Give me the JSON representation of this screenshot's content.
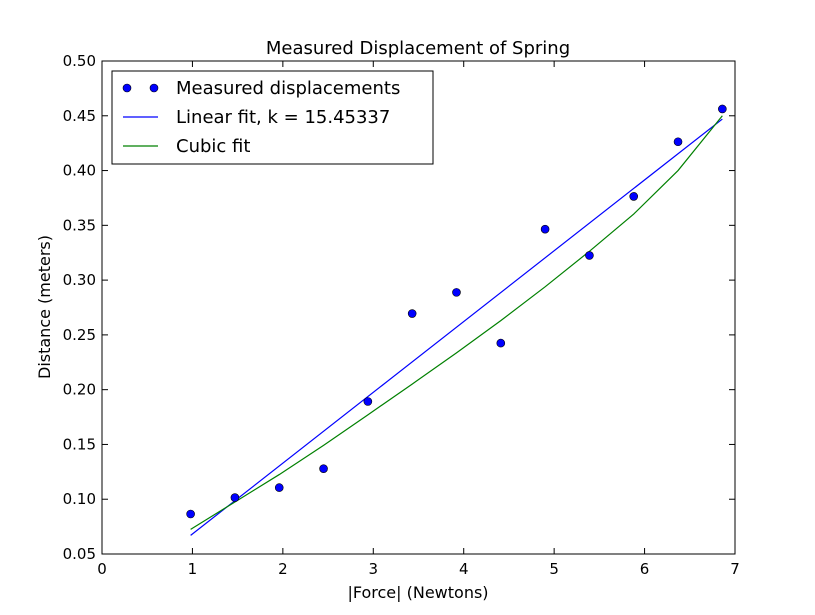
{
  "chart_data": {
    "type": "scatter",
    "title": "Measured Displacement of Spring",
    "xlabel": "|Force| (Newtons)",
    "ylabel": "Distance (meters)",
    "xlim": [
      0,
      7
    ],
    "ylim": [
      0.05,
      0.5
    ],
    "xticks": [
      0,
      1,
      2,
      3,
      4,
      5,
      6,
      7
    ],
    "xtick_labels": [
      "0",
      "1",
      "2",
      "3",
      "4",
      "5",
      "6",
      "7"
    ],
    "yticks": [
      0.05,
      0.1,
      0.15,
      0.2,
      0.25,
      0.3,
      0.35,
      0.4,
      0.45,
      0.5
    ],
    "ytick_labels": [
      "0.05",
      "0.10",
      "0.15",
      "0.20",
      "0.25",
      "0.30",
      "0.35",
      "0.40",
      "0.45",
      "0.50"
    ],
    "grid": false,
    "legend_position": "top-left",
    "series": [
      {
        "name": "Measured displacements",
        "kind": "markers",
        "color": "#0000ff",
        "x": [
          0.98,
          1.47,
          1.96,
          2.45,
          2.94,
          3.43,
          3.92,
          4.41,
          4.9,
          5.39,
          5.88,
          6.37,
          6.86
        ],
        "y": [
          0.0865,
          0.1015,
          0.1106,
          0.1279,
          0.1892,
          0.2695,
          0.2888,
          0.2425,
          0.3465,
          0.3225,
          0.3764,
          0.4263,
          0.4562
        ]
      },
      {
        "name": "Linear fit, k = 15.45337",
        "kind": "line",
        "color": "#0000ff",
        "x": [
          0.98,
          6.86
        ],
        "y": [
          0.067,
          0.447
        ]
      },
      {
        "name": "Cubic fit",
        "kind": "line",
        "color": "#008000",
        "x": [
          0.98,
          1.47,
          1.96,
          2.45,
          2.94,
          3.43,
          3.92,
          4.41,
          4.9,
          5.39,
          5.88,
          6.37,
          6.86
        ],
        "y": [
          0.0725,
          0.0975,
          0.1225,
          0.1492,
          0.177,
          0.2051,
          0.2336,
          0.263,
          0.2939,
          0.3263,
          0.3603,
          0.4,
          0.45
        ]
      }
    ]
  }
}
